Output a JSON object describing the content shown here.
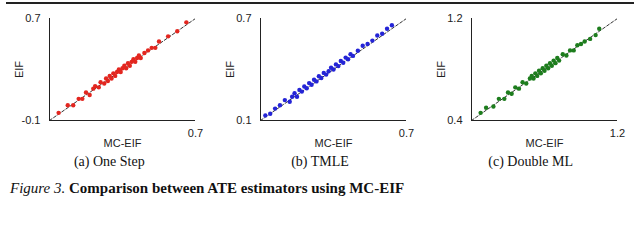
{
  "chart_data": [
    {
      "type": "scatter",
      "title": "(a) One Step",
      "x_label": "MC-EIF",
      "y_label": "EIF",
      "color": "#e3261f",
      "marker": "circle",
      "line_style": "dashed",
      "x": [
        -0.05,
        0.0,
        0.03,
        0.06,
        0.08,
        0.1,
        0.12,
        0.14,
        0.15,
        0.17,
        0.18,
        0.2,
        0.21,
        0.22,
        0.23,
        0.24,
        0.25,
        0.26,
        0.27,
        0.28,
        0.29,
        0.3,
        0.31,
        0.32,
        0.33,
        0.34,
        0.35,
        0.36,
        0.37,
        0.38,
        0.39,
        0.4,
        0.42,
        0.44,
        0.46,
        0.48,
        0.5,
        0.55,
        0.6,
        0.65
      ],
      "values": [
        -0.04,
        0.02,
        0.02,
        0.07,
        0.07,
        0.12,
        0.1,
        0.15,
        0.17,
        0.16,
        0.2,
        0.19,
        0.23,
        0.21,
        0.25,
        0.23,
        0.27,
        0.25,
        0.28,
        0.3,
        0.28,
        0.31,
        0.33,
        0.31,
        0.35,
        0.33,
        0.36,
        0.38,
        0.36,
        0.39,
        0.41,
        0.39,
        0.43,
        0.45,
        0.47,
        0.47,
        0.52,
        0.56,
        0.6,
        0.67
      ],
      "xlim": [
        -0.1,
        0.7
      ],
      "ylim": [
        -0.1,
        0.7
      ],
      "xticks": [
        0.7
      ],
      "yticks": [
        -0.1,
        0.7
      ]
    },
    {
      "type": "scatter",
      "title": "(b) TMLE",
      "x_label": "MC-EIF",
      "y_label": "EIF",
      "color": "#2424d6",
      "marker": "circle",
      "line_style": "dashed",
      "x": [
        0.12,
        0.14,
        0.16,
        0.18,
        0.2,
        0.22,
        0.23,
        0.24,
        0.25,
        0.26,
        0.27,
        0.28,
        0.29,
        0.3,
        0.31,
        0.32,
        0.33,
        0.34,
        0.35,
        0.36,
        0.37,
        0.38,
        0.39,
        0.4,
        0.41,
        0.42,
        0.43,
        0.44,
        0.45,
        0.46,
        0.47,
        0.48,
        0.5,
        0.52,
        0.54,
        0.56,
        0.58,
        0.6,
        0.62,
        0.64
      ],
      "values": [
        0.13,
        0.14,
        0.17,
        0.19,
        0.22,
        0.21,
        0.24,
        0.26,
        0.24,
        0.28,
        0.27,
        0.3,
        0.29,
        0.32,
        0.31,
        0.34,
        0.33,
        0.36,
        0.35,
        0.38,
        0.37,
        0.39,
        0.41,
        0.4,
        0.43,
        0.42,
        0.45,
        0.44,
        0.47,
        0.46,
        0.49,
        0.48,
        0.51,
        0.54,
        0.55,
        0.57,
        0.6,
        0.61,
        0.64,
        0.66
      ],
      "xlim": [
        0.1,
        0.7
      ],
      "ylim": [
        0.1,
        0.7
      ],
      "xticks": [
        0.7
      ],
      "yticks": [
        0.1,
        0.7
      ]
    },
    {
      "type": "scatter",
      "title": "(c) Double ML",
      "x_label": "MC-EIF",
      "y_label": "EIF",
      "color": "#1d7d1d",
      "marker": "circle",
      "line_style": "dashed",
      "x": [
        0.45,
        0.48,
        0.52,
        0.55,
        0.58,
        0.6,
        0.62,
        0.64,
        0.66,
        0.68,
        0.7,
        0.72,
        0.73,
        0.74,
        0.75,
        0.76,
        0.77,
        0.78,
        0.79,
        0.8,
        0.81,
        0.82,
        0.83,
        0.84,
        0.85,
        0.86,
        0.87,
        0.88,
        0.9,
        0.92,
        0.94,
        0.96,
        0.98,
        1.0,
        1.02,
        1.05,
        1.08,
        1.1
      ],
      "values": [
        0.46,
        0.5,
        0.51,
        0.57,
        0.57,
        0.62,
        0.61,
        0.66,
        0.65,
        0.7,
        0.69,
        0.73,
        0.75,
        0.73,
        0.77,
        0.75,
        0.79,
        0.77,
        0.81,
        0.79,
        0.83,
        0.81,
        0.85,
        0.83,
        0.87,
        0.85,
        0.89,
        0.87,
        0.92,
        0.91,
        0.95,
        0.95,
        0.99,
        1.0,
        1.02,
        1.04,
        1.07,
        1.12
      ],
      "xlim": [
        0.4,
        1.2
      ],
      "ylim": [
        0.4,
        1.2
      ],
      "xticks": [
        1.2
      ],
      "yticks": [
        0.4,
        1.2
      ]
    }
  ],
  "caption": {
    "label": "Figure 3.",
    "text": "Comparison between ATE estimators using MC-EIF"
  }
}
